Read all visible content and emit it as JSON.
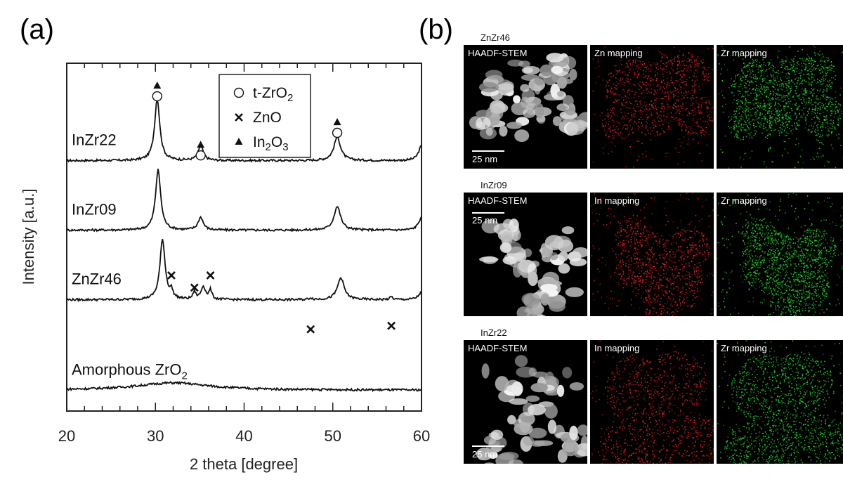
{
  "panel_a_label": "(a)",
  "panel_b_label": "(b)",
  "chart_data": {
    "type": "line",
    "xlabel": "2 theta [degree]",
    "ylabel": "Intensity [a.u.]",
    "xlim": [
      20,
      60
    ],
    "xticks": [
      "20",
      "30",
      "40",
      "50",
      "60"
    ],
    "legend_position": "top-right",
    "legend": [
      {
        "marker": "circle",
        "label": "t-ZrO",
        "sub": "2"
      },
      {
        "marker": "cross",
        "label": "ZnO",
        "sub": ""
      },
      {
        "marker": "triangle",
        "label": "In",
        "sub": "2",
        "label2": "O",
        "sub2": "3"
      }
    ],
    "series": [
      {
        "name": "InZr22",
        "sub": "",
        "name_suffix": "",
        "baseline": 0.72,
        "peaks": [
          {
            "x": 30.2,
            "h": 3.4,
            "w": 0.35
          },
          {
            "x": 35.1,
            "h": 0.8,
            "w": 0.35
          },
          {
            "x": 50.5,
            "h": 1.3,
            "w": 0.45
          },
          {
            "x": 60.0,
            "h": 0.8,
            "w": 0.4
          }
        ]
      },
      {
        "name": "InZr09",
        "sub": "",
        "name_suffix": "",
        "baseline": 0.52,
        "peaks": [
          {
            "x": 30.3,
            "h": 3.3,
            "w": 0.35
          },
          {
            "x": 35.1,
            "h": 0.7,
            "w": 0.35
          },
          {
            "x": 50.5,
            "h": 1.3,
            "w": 0.45
          },
          {
            "x": 60.0,
            "h": 0.7,
            "w": 0.4
          }
        ]
      },
      {
        "name": "ZnZr46",
        "sub": "",
        "name_suffix": "",
        "baseline": 0.32,
        "peaks": [
          {
            "x": 30.8,
            "h": 3.3,
            "w": 0.35
          },
          {
            "x": 31.8,
            "h": 0.4,
            "w": 0.2
          },
          {
            "x": 34.4,
            "h": 0.4,
            "w": 0.2
          },
          {
            "x": 35.4,
            "h": 0.7,
            "w": 0.3
          },
          {
            "x": 36.2,
            "h": 0.5,
            "w": 0.2
          },
          {
            "x": 47.5,
            "h": 0.1,
            "w": 0.2
          },
          {
            "x": 50.9,
            "h": 1.2,
            "w": 0.45
          },
          {
            "x": 56.6,
            "h": 0.15,
            "w": 0.2
          },
          {
            "x": 60.0,
            "h": 0.4,
            "w": 0.4
          }
        ]
      },
      {
        "name": "Amorphous ZrO",
        "sub": "2",
        "name_suffix": "",
        "baseline": 0.06,
        "peaks": [
          {
            "x": 32.0,
            "h": 0.4,
            "w": 5.0
          }
        ]
      }
    ],
    "markers": [
      {
        "type": "triangle",
        "x": 30.2,
        "level": 0.935
      },
      {
        "type": "circle",
        "x": 30.2,
        "level": 0.905
      },
      {
        "type": "triangle",
        "x": 35.1,
        "level": 0.765
      },
      {
        "type": "circle",
        "x": 35.1,
        "level": 0.735
      },
      {
        "type": "triangle",
        "x": 50.5,
        "level": 0.83
      },
      {
        "type": "circle",
        "x": 50.5,
        "level": 0.8
      },
      {
        "type": "cross",
        "x": 31.8,
        "level": 0.39
      },
      {
        "type": "cross",
        "x": 34.4,
        "level": 0.355
      },
      {
        "type": "cross",
        "x": 36.2,
        "level": 0.39
      },
      {
        "type": "cross",
        "x": 47.5,
        "level": 0.235
      },
      {
        "type": "cross",
        "x": 56.6,
        "level": 0.245
      }
    ]
  },
  "mapping_rows": [
    {
      "title": "ZnZr46",
      "tiles": [
        {
          "label": "HAADF-STEM",
          "kind": "haadf",
          "scale": "25 nm",
          "scale_pos": "bottom"
        },
        {
          "label": "Zn mapping",
          "kind": "red"
        },
        {
          "label": "Zr mapping",
          "kind": "green"
        }
      ]
    },
    {
      "title": "InZr09",
      "tiles": [
        {
          "label": "HAADF-STEM",
          "kind": "haadf",
          "scale": "25 nm",
          "scale_pos": "top"
        },
        {
          "label": "In mapping",
          "kind": "red"
        },
        {
          "label": "Zr mapping",
          "kind": "green"
        }
      ]
    },
    {
      "title": "InZr22",
      "tiles": [
        {
          "label": "HAADF-STEM",
          "kind": "haadf",
          "scale": "25 nm",
          "scale_pos": "bottom"
        },
        {
          "label": "In mapping",
          "kind": "red"
        },
        {
          "label": "Zr mapping",
          "kind": "green"
        }
      ]
    }
  ],
  "colors": {
    "red_map": "#e0201e",
    "green_map": "#22d22a",
    "haadf": "#e8e8e8"
  }
}
